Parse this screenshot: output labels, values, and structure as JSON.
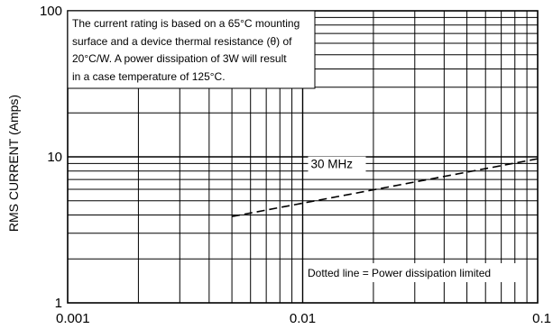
{
  "chart_data": {
    "type": "line",
    "title": "",
    "xlabel": "",
    "ylabel": "RMS CURRENT (Amps)",
    "x_scale": "log",
    "y_scale": "log",
    "xlim": [
      0.001,
      0.1
    ],
    "ylim": [
      1,
      100
    ],
    "grid": true,
    "x_tick_labels": [
      "0.001",
      "0.01",
      "0.1"
    ],
    "y_tick_labels": [
      "1",
      "10",
      "100"
    ],
    "series": [
      {
        "name": "30 MHz",
        "style": "dashed",
        "x": [
          0.005,
          0.1
        ],
        "y": [
          3.9,
          9.7
        ]
      }
    ],
    "annotations": [
      {
        "lines": [
          "The current rating is based on a 65°C mounting",
          "surface and a device thermal resistance (θ) of",
          "20°C/W. A power dissipation of 3W will result",
          "in a case temperature of 125°C."
        ]
      },
      {
        "text": "Dotted line =  Power dissipation limited"
      }
    ],
    "colors": {
      "line": "#000000",
      "grid": "#000000",
      "background": "#ffffff"
    }
  }
}
